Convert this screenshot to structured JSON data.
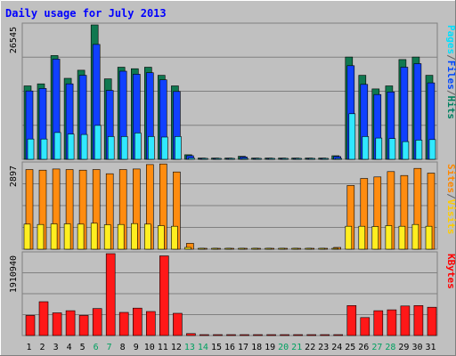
{
  "chart_data": {
    "type": "bar",
    "title": "Daily usage for July 2013",
    "categories": [
      "1",
      "2",
      "3",
      "4",
      "5",
      "6",
      "7",
      "8",
      "9",
      "10",
      "11",
      "12",
      "13",
      "14",
      "15",
      "16",
      "17",
      "18",
      "19",
      "20",
      "21",
      "22",
      "23",
      "24",
      "25",
      "26",
      "27",
      "28",
      "29",
      "30",
      "31"
    ],
    "weekend_days": [
      "6",
      "7",
      "13",
      "14",
      "20",
      "21",
      "27",
      "28"
    ],
    "panels": [
      {
        "id": "hits",
        "ymax": 26545,
        "ymax_label": "26545",
        "legend": [
          {
            "text": "Pages",
            "color": "#00e0ff"
          },
          {
            "text": "/",
            "color": "#606060"
          },
          {
            "text": "Files",
            "color": "#0048ff"
          },
          {
            "text": "/",
            "color": "#606060"
          },
          {
            "text": "Hits",
            "color": "#008060"
          }
        ],
        "series": [
          {
            "name": "Hits",
            "color": "#107850",
            "values": [
              14500,
              14900,
              20500,
              16000,
              17600,
              26545,
              15900,
              18200,
              17900,
              18200,
              16600,
              14500,
              900,
              250,
              250,
              250,
              600,
              250,
              250,
              250,
              250,
              250,
              250,
              700,
              20200,
              16600,
              13900,
              14500,
              19700,
              20200,
              16600
            ]
          },
          {
            "name": "Files",
            "color": "#1040ff",
            "values": [
              13500,
              14000,
              19800,
              14900,
              16600,
              22700,
              13600,
              17400,
              16800,
              17100,
              15700,
              13400,
              700,
              150,
              150,
              150,
              450,
              150,
              150,
              150,
              150,
              150,
              150,
              550,
              18500,
              14800,
              12800,
              13300,
              18200,
              18900,
              15100
            ]
          },
          {
            "name": "Pages",
            "color": "#30e8ff",
            "values": [
              4000,
              4000,
              5300,
              5000,
              4900,
              6700,
              4500,
              4500,
              5200,
              4500,
              4400,
              4500,
              250,
              50,
              50,
              50,
              150,
              50,
              50,
              50,
              50,
              50,
              50,
              150,
              9000,
              4500,
              4200,
              4100,
              3500,
              3800,
              3900
            ]
          }
        ]
      },
      {
        "id": "visits",
        "ymax": 2897,
        "ymax_label": "2897",
        "legend": [
          {
            "text": "Sites",
            "color": "#ff8800"
          },
          {
            "text": "/",
            "color": "#606060"
          },
          {
            "text": "Visits",
            "color": "#ffcc00"
          }
        ],
        "series": [
          {
            "name": "Visits",
            "color": "#ff8c10",
            "values": [
              2700,
              2680,
              2720,
              2700,
              2680,
              2700,
              2560,
              2700,
              2720,
              2870,
              2890,
              2620,
              200,
              30,
              30,
              30,
              30,
              30,
              30,
              30,
              30,
              30,
              30,
              60,
              2160,
              2400,
              2450,
              2630,
              2500,
              2740,
              2580
            ]
          },
          {
            "name": "Sites",
            "color": "#ffee20",
            "values": [
              850,
              840,
              860,
              860,
              850,
              880,
              830,
              840,
              870,
              850,
              800,
              780,
              60,
              10,
              10,
              10,
              10,
              10,
              10,
              10,
              10,
              10,
              10,
              20,
              780,
              780,
              770,
              800,
              780,
              840,
              780
            ]
          }
        ]
      },
      {
        "id": "kbytes",
        "ymax": 1910940,
        "ymax_label": "1910940",
        "legend": [
          {
            "text": "KBytes",
            "color": "#ff0000"
          }
        ],
        "series": [
          {
            "name": "KBytes",
            "color": "#ff1818",
            "values": [
              470000,
              790000,
              530000,
              580000,
              470000,
              630000,
              1910940,
              540000,
              640000,
              560000,
              1860000,
              520000,
              45000,
              5000,
              5000,
              5000,
              8000,
              5000,
              5000,
              5000,
              5000,
              5000,
              5000,
              15000,
              700000,
              420000,
              580000,
              600000,
              690000,
              700000,
              660000
            ]
          }
        ]
      }
    ]
  }
}
